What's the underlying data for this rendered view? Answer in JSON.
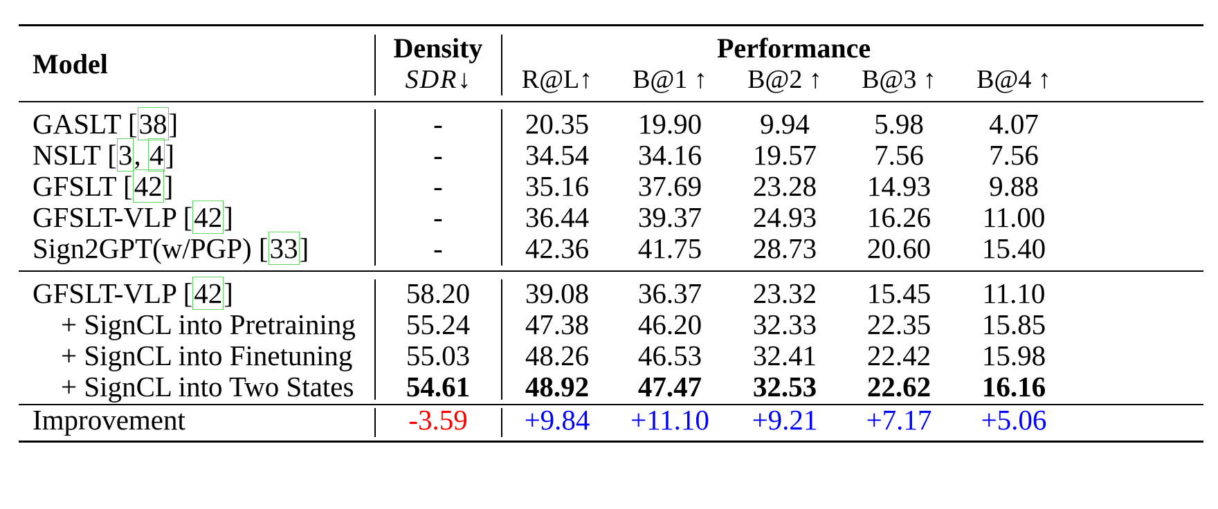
{
  "header": {
    "model": "Model",
    "density": "Density",
    "sdr": "SDR",
    "sdr_arrow": "↓",
    "performance": "Performance",
    "metrics": [
      "R@L↑",
      "B@1 ↑",
      "B@2 ↑",
      "B@3 ↑",
      "B@4 ↑"
    ]
  },
  "group1": [
    {
      "name": "GASLT [",
      "refs": [
        "38"
      ],
      "close": "]",
      "density": "-",
      "values": [
        "20.35",
        "19.90",
        "9.94",
        "5.98",
        "4.07"
      ]
    },
    {
      "name": "NSLT [",
      "refs": [
        "3",
        "4"
      ],
      "close": "]",
      "density": "-",
      "values": [
        "34.54",
        "34.16",
        "19.57",
        "7.56",
        "7.56"
      ]
    },
    {
      "name": "GFSLT [",
      "refs": [
        "42"
      ],
      "close": "]",
      "density": "-",
      "values": [
        "35.16",
        "37.69",
        "23.28",
        "14.93",
        "9.88"
      ]
    },
    {
      "name": "GFSLT-VLP [",
      "refs": [
        "42"
      ],
      "close": "]",
      "density": "-",
      "values": [
        "36.44",
        "39.37",
        "24.93",
        "16.26",
        "11.00"
      ]
    },
    {
      "name": "Sign2GPT(w/PGP) [",
      "refs": [
        "33"
      ],
      "close": "]",
      "density": "-",
      "values": [
        "42.36",
        "41.75",
        "28.73",
        "20.60",
        "15.40"
      ]
    }
  ],
  "group2": [
    {
      "name": "GFSLT-VLP [",
      "refs": [
        "42"
      ],
      "close": "]",
      "density": "58.20",
      "values": [
        "39.08",
        "36.37",
        "23.32",
        "15.45",
        "11.10"
      ]
    },
    {
      "name": "+ SignCL into Pretraining",
      "density": "55.24",
      "values": [
        "47.38",
        "46.20",
        "32.33",
        "22.35",
        "15.85"
      ]
    },
    {
      "name": "+ SignCL into Finetuning",
      "density": "55.03",
      "values": [
        "48.26",
        "46.53",
        "32.41",
        "22.42",
        "15.98"
      ]
    },
    {
      "name": "+ SignCL into Two States",
      "density": "54.61",
      "values": [
        "48.92",
        "47.47",
        "32.53",
        "22.62",
        "16.16"
      ]
    }
  ],
  "improvement": {
    "label": "Improvement",
    "density": "-3.59",
    "values": [
      "+9.84",
      "+11.10",
      "+9.21",
      "+7.17",
      "+5.06"
    ],
    "negative_color": "#ff0000",
    "positive_color": "#0000ff"
  },
  "colors": {
    "rule": "#000000",
    "ref_box": "#5fd35f"
  }
}
